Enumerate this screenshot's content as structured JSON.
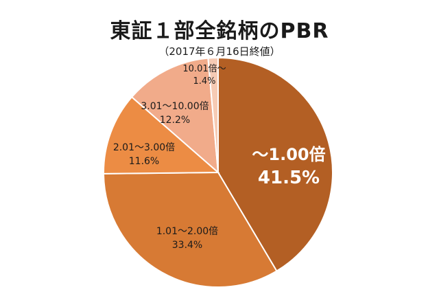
{
  "title": "東証１部全銘柄のPBR",
  "subtitle": "（2017年６月16日終値）",
  "chart_data": {
    "type": "pie",
    "slices": [
      {
        "label": "〜1.00倍",
        "percent_label": "41.5%",
        "value": 41.5,
        "color": "#b35f24",
        "text_color": "#ffffff"
      },
      {
        "label": "1.01〜2.00倍",
        "percent_label": "33.4%",
        "value": 33.4,
        "color": "#d77a34",
        "text_color": "#1a1a1a"
      },
      {
        "label": "2.01〜3.00倍",
        "percent_label": "11.6%",
        "value": 11.6,
        "color": "#ec8c44",
        "text_color": "#1a1a1a"
      },
      {
        "label": "3.01〜10.00倍",
        "percent_label": "12.2%",
        "value": 12.2,
        "color": "#f1ab8a",
        "text_color": "#1a1a1a"
      },
      {
        "label": "10.01倍〜",
        "percent_label": "1.4%",
        "value": 1.4,
        "color": "#f6cbb4",
        "text_color": "#1a1a1a"
      }
    ]
  }
}
